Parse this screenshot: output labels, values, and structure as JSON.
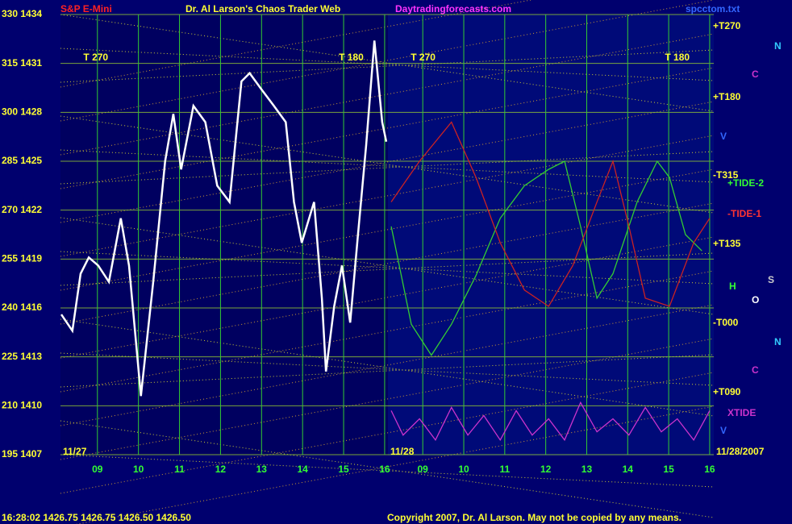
{
  "header": {
    "symbol": "S&P E-Mini",
    "title": "Dr. Al Larson's Chaos Trader Web",
    "site": "Daytradingforecasts.com",
    "file": "spcctom.txt",
    "end_date": "11/28/2007"
  },
  "footer": {
    "status": "16:28:02  1426.75 1426.75 1426.50 1426.50",
    "copyright": "Copyright 2007, Dr. Al Larson. May not be copied by any means."
  },
  "right_labels": [
    "+T270",
    "+T180",
    "-T315",
    "+TIDE-2",
    "-TIDE-1",
    "+T135",
    "-T000",
    "+T090",
    "XTIDE",
    "N",
    "C",
    "V",
    "N",
    "C",
    "V",
    "H",
    "O",
    "S"
  ],
  "chart_data": [
    {
      "type": "line",
      "date_label": "11/27",
      "annotations": [
        "T 270",
        "T 180"
      ],
      "xlim": [
        8.1,
        16.08
      ],
      "ylim": [
        1407,
        1434
      ],
      "yticks": [
        {
          "value": 1434,
          "label": "330 1434"
        },
        {
          "value": 1431,
          "label": "315 1431"
        },
        {
          "value": 1428,
          "label": "300 1428"
        },
        {
          "value": 1425,
          "label": "285 1425"
        },
        {
          "value": 1422,
          "label": "270 1422"
        },
        {
          "value": 1419,
          "label": "255 1419"
        },
        {
          "value": 1416,
          "label": "240 1416"
        },
        {
          "value": 1413,
          "label": "225 1413"
        },
        {
          "value": 1410,
          "label": "210 1410"
        },
        {
          "value": 1407,
          "label": "195 1407"
        }
      ],
      "xticks": [
        {
          "value": 9,
          "label": "09"
        },
        10,
        11,
        12,
        13,
        14,
        15,
        16
      ],
      "series": [
        {
          "color": "#ffffff",
          "x": [
            8.12,
            8.39,
            8.59,
            8.79,
            9.02,
            9.28,
            9.57,
            9.77,
            10.06,
            10.36,
            10.65,
            10.85,
            11.04,
            11.34,
            11.63,
            11.92,
            12.22,
            12.51,
            12.71,
            13.0,
            13.3,
            13.59,
            13.79,
            13.98,
            14.28,
            14.47,
            14.57,
            14.77,
            14.96,
            15.16,
            15.35,
            15.55,
            15.75,
            15.94,
            16.04
          ],
          "values": [
            1415.6,
            1414.6,
            1418.1,
            1419.1,
            1418.6,
            1417.6,
            1421.5,
            1418.6,
            1410.6,
            1417.6,
            1425.0,
            1427.9,
            1424.5,
            1428.4,
            1427.4,
            1423.5,
            1422.5,
            1429.9,
            1430.4,
            1429.4,
            1428.4,
            1427.4,
            1422.5,
            1420.0,
            1422.5,
            1416.6,
            1412.1,
            1416.1,
            1418.6,
            1415.1,
            1420.5,
            1426.0,
            1432.4,
            1427.4,
            1426.2
          ]
        }
      ]
    },
    {
      "type": "line",
      "date_label": "11/28",
      "annotations": [
        "T 270",
        "T 180"
      ],
      "xlim": [
        8.15,
        16.1
      ],
      "ylim": [
        1407,
        1434
      ],
      "xticks": [
        {
          "value": 9,
          "label": "09"
        },
        10,
        11,
        12,
        13,
        14,
        15,
        16
      ],
      "series": [
        {
          "name": "+TIDE-2",
          "color": "#33cc33",
          "x": [
            8.23,
            8.72,
            9.21,
            9.7,
            10.3,
            10.89,
            11.48,
            12.07,
            12.46,
            12.85,
            13.25,
            13.64,
            14.23,
            14.72,
            15.02,
            15.41,
            15.81
          ],
          "values": [
            1421.0,
            1415.0,
            1413.1,
            1415.0,
            1418.0,
            1421.5,
            1423.5,
            1424.5,
            1425.0,
            1421.0,
            1416.6,
            1418.1,
            1422.5,
            1425.0,
            1424.0,
            1420.5,
            1419.5
          ]
        },
        {
          "name": "-TIDE-1",
          "color": "#cc2222",
          "x": [
            8.23,
            8.92,
            9.7,
            10.3,
            10.89,
            11.48,
            12.07,
            12.66,
            13.25,
            13.64,
            14.03,
            14.43,
            15.02,
            15.61,
            16.0
          ],
          "values": [
            1422.5,
            1425.0,
            1427.4,
            1424.0,
            1420.0,
            1417.1,
            1416.1,
            1418.6,
            1422.5,
            1425.0,
            1421.0,
            1416.6,
            1416.1,
            1420.0,
            1421.5
          ]
        },
        {
          "name": "XTIDE",
          "color": "#cc33cc",
          "x": [
            8.23,
            8.52,
            8.92,
            9.31,
            9.7,
            10.1,
            10.49,
            10.89,
            11.28,
            11.67,
            12.07,
            12.46,
            12.85,
            13.25,
            13.64,
            14.03,
            14.43,
            14.82,
            15.21,
            15.61,
            16.0
          ],
          "values": [
            1409.7,
            1408.2,
            1409.2,
            1407.9,
            1409.9,
            1408.2,
            1409.4,
            1407.9,
            1409.7,
            1408.2,
            1409.2,
            1407.9,
            1410.2,
            1408.4,
            1409.2,
            1408.2,
            1409.9,
            1408.4,
            1409.2,
            1407.9,
            1409.7
          ]
        }
      ]
    }
  ]
}
